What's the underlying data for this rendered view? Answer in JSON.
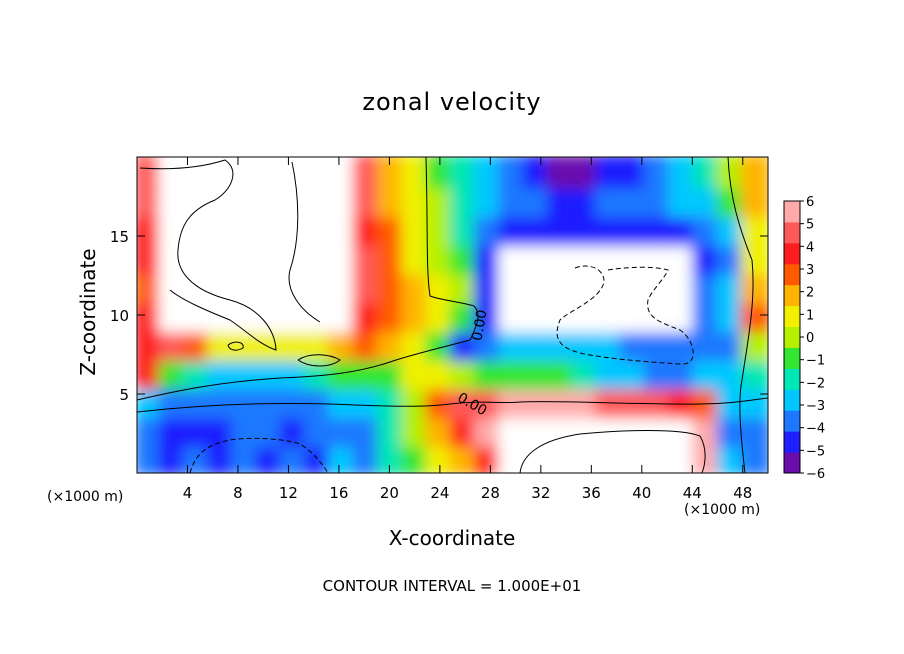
{
  "chart_data": {
    "type": "heatmap",
    "title": "zonal velocity",
    "xlabel": "X-coordinate",
    "ylabel": "Z-coordinate",
    "x_unit_left": "(×1000 m)",
    "x_unit_right": "(×1000 m)",
    "footer": "CONTOUR INTERVAL = 1.000E+01",
    "xlim": [
      0,
      50
    ],
    "ylim": [
      0,
      20
    ],
    "x_ticks": [
      4,
      8,
      12,
      16,
      20,
      24,
      28,
      32,
      36,
      40,
      44,
      48
    ],
    "y_ticks": [
      5,
      10,
      15
    ],
    "colorbar": {
      "min": -6,
      "max": 6,
      "ticks": [
        6,
        5,
        4,
        3,
        2,
        1,
        0,
        -1,
        -2,
        -3,
        -4,
        -5,
        -6
      ],
      "tick_labels": [
        "6",
        "5",
        "4",
        "3",
        "2",
        "1",
        "0",
        "−1",
        "−2",
        "−3",
        "−4",
        "−5",
        "−6"
      ],
      "colors": [
        "#6a0dad",
        "#1e1eff",
        "#1e78ff",
        "#00c8ff",
        "#00e6b4",
        "#32e632",
        "#b4f000",
        "#f0f000",
        "#ffb400",
        "#ff5a00",
        "#ff1e1e",
        "#ff5a5a",
        "#ffaaaa"
      ]
    },
    "contour_labels": [
      "0.00",
      "0.00"
    ],
    "field": {
      "nx": 26,
      "nz": 11,
      "x0": 0,
      "x1": 50,
      "z0": 0,
      "z1": 20,
      "values": [
        [
          -4,
          -5,
          -4,
          -5,
          -4,
          -5,
          -4,
          -5,
          -3,
          -4,
          -2,
          -1,
          1,
          2,
          4,
          9,
          9,
          9,
          9,
          9,
          9,
          9,
          9,
          6,
          -3,
          -4
        ],
        [
          -4,
          -5,
          -5,
          -5,
          -4,
          -4,
          -5,
          -4,
          -4,
          -4,
          -2,
          0,
          2,
          4,
          6,
          9,
          9,
          9,
          9,
          9,
          9,
          9,
          9,
          6,
          -4,
          -4
        ],
        [
          -3,
          -4,
          -4,
          -4,
          -4,
          -4,
          -4,
          -4,
          -3,
          -3,
          -2,
          0,
          3,
          5,
          5,
          6,
          6,
          6,
          6,
          5,
          5,
          5,
          4,
          3,
          -3,
          -3
        ],
        [
          4,
          -1,
          -2,
          -3,
          -3,
          -3,
          -3,
          -2,
          -1,
          -1,
          -1,
          1,
          1,
          0,
          -1,
          -1,
          -1,
          -1,
          -2,
          -3,
          -3,
          -4,
          -4,
          -3,
          -3,
          -2
        ],
        [
          4,
          5,
          3,
          1,
          1,
          1,
          1,
          1,
          2,
          3,
          2,
          1,
          -1,
          -5,
          -4,
          -3,
          -3,
          -3,
          -3,
          -3,
          -4,
          -4,
          -4,
          -4,
          -4,
          0
        ],
        [
          4,
          9,
          9,
          9,
          9,
          9,
          9,
          9,
          9,
          4,
          3,
          2,
          1,
          -1,
          -5,
          9,
          9,
          9,
          9,
          9,
          9,
          9,
          9,
          -4,
          -3,
          3
        ],
        [
          3,
          9,
          9,
          9,
          9,
          9,
          9,
          9,
          9,
          5,
          3,
          2,
          1,
          0,
          -5,
          9,
          9,
          9,
          9,
          9,
          9,
          9,
          9,
          -4,
          -3,
          2
        ],
        [
          4,
          9,
          9,
          9,
          9,
          9,
          9,
          9,
          9,
          5,
          3,
          1,
          0,
          -1,
          -5,
          9,
          9,
          9,
          9,
          9,
          9,
          9,
          9,
          -5,
          -4,
          1
        ],
        [
          4,
          9,
          9,
          9,
          9,
          9,
          9,
          9,
          9,
          4,
          3,
          1,
          0,
          -2,
          -4,
          -5,
          -5,
          -5,
          -5,
          -5,
          -5,
          -5,
          -5,
          -4,
          -3,
          1
        ],
        [
          5,
          9,
          9,
          9,
          9,
          9,
          9,
          9,
          9,
          5,
          2,
          1,
          0,
          -2,
          -3,
          -4,
          -4,
          -5,
          -5,
          -4,
          -4,
          -4,
          -3,
          -3,
          -1,
          2
        ],
        [
          5,
          9,
          9,
          9,
          9,
          9,
          9,
          9,
          9,
          5,
          2,
          1,
          -1,
          -2,
          -3,
          -4,
          -5,
          -6,
          -6,
          -5,
          -5,
          -4,
          -3,
          -2,
          0,
          2
        ]
      ]
    }
  }
}
